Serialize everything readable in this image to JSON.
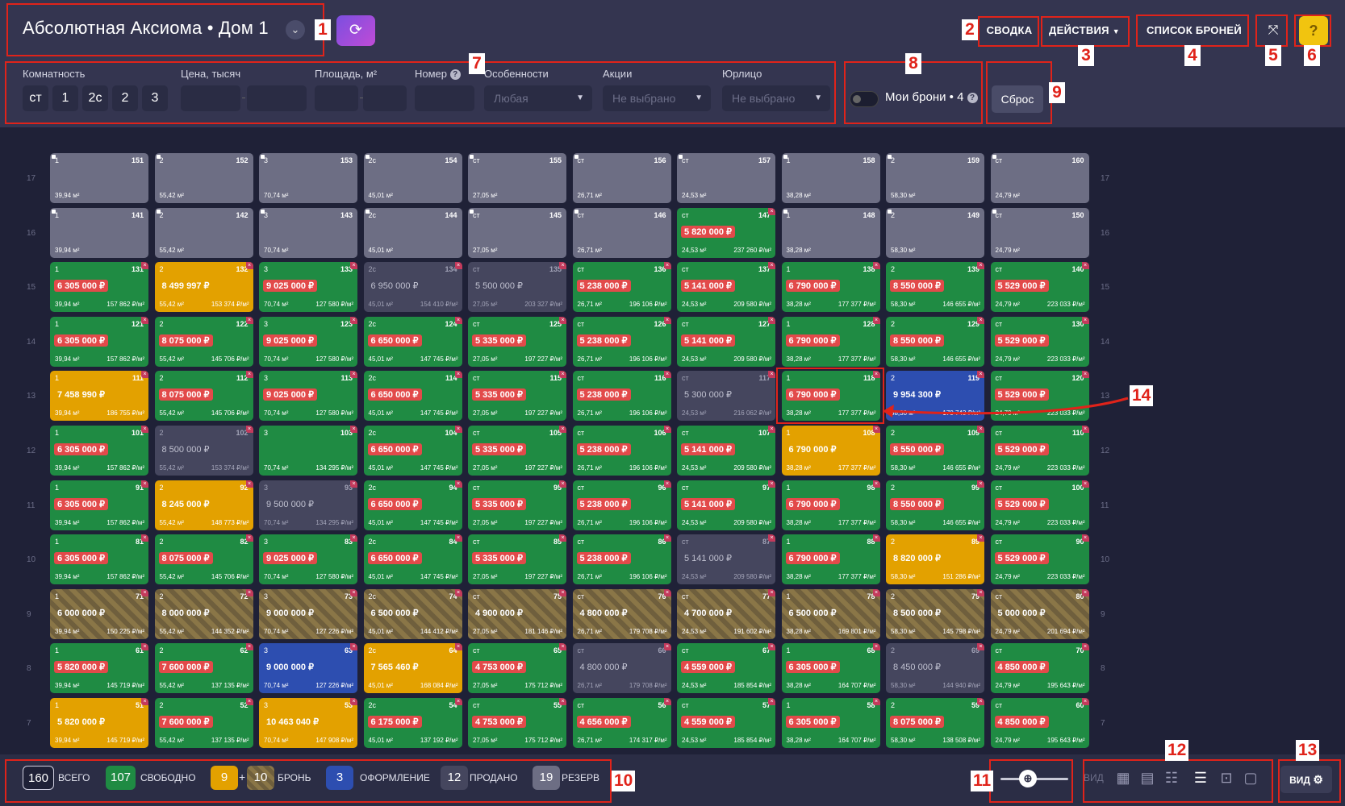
{
  "header": {
    "project_title": "Абсолютная Аксиома • Дом 1",
    "summary_label": "СВОДКА",
    "actions_label": "ДЕЙСТВИЯ",
    "bookings_list_label": "СПИСОК БРОНЕЙ",
    "expand_icon": "expand-icon",
    "help_icon": "help-icon"
  },
  "filters": {
    "rooms_label": "Комнатность",
    "rooms": [
      "ст",
      "1",
      "2с",
      "2",
      "3"
    ],
    "price_label": "Цена, тысяч",
    "area_label": "Площадь, м²",
    "number_label": "Номер",
    "features_label": "Особенности",
    "features_value": "Любая",
    "promos_label": "Акции",
    "promos_value": "Не выбрано",
    "legal_label": "Юрлицо",
    "legal_value": "Не выбрано",
    "my_bookings": "Мои брони • 4",
    "reset_label": "Сброс"
  },
  "footer": {
    "total_count": "160",
    "total_label": "ВСЕГО",
    "free_count": "107",
    "free_label": "СВОБОДНО",
    "book_count_a": "9",
    "plus": "+",
    "book_count_b": "10",
    "book_label": "БРОНЬ",
    "proc_count": "3",
    "proc_label": "ОФОРМЛЕНИЕ",
    "sold_count": "12",
    "sold_label": "ПРОДАНО",
    "res_count": "19",
    "res_label": "РЕЗЕРВ",
    "view_label": "ВИД",
    "view_button": "ВИД"
  },
  "annotations": [
    "1",
    "2",
    "3",
    "4",
    "5",
    "6",
    "7",
    "8",
    "9",
    "10",
    "11",
    "12",
    "13",
    "14"
  ],
  "colors": {
    "free": "#1f8b43",
    "booking": "#e3a100",
    "processing": "#2d4eb0",
    "sold": "#45465e",
    "reserve": "#6d6e84",
    "price_tag": "#e24a4a",
    "annotation": "#e0231a"
  },
  "floors": [
    "17",
    "16",
    "15",
    "14",
    "13",
    "12",
    "11",
    "10",
    "9",
    "8",
    "7"
  ],
  "grid": [
    [
      [
        "1",
        "151",
        "",
        "39,94 м²",
        "",
        "res"
      ],
      [
        "2",
        "152",
        "",
        "55,42 м²",
        "",
        "res"
      ],
      [
        "3",
        "153",
        "",
        "70,74 м²",
        "",
        "res"
      ],
      [
        "2с",
        "154",
        "",
        "45,01 м²",
        "",
        "res"
      ],
      [
        "ст",
        "155",
        "",
        "27,05 м²",
        "",
        "res"
      ],
      [
        "ст",
        "156",
        "",
        "26,71 м²",
        "",
        "res"
      ],
      [
        "ст",
        "157",
        "",
        "24,53 м²",
        "",
        "res"
      ],
      [
        "1",
        "158",
        "",
        "38,28 м²",
        "",
        "res"
      ],
      [
        "2",
        "159",
        "",
        "58,30 м²",
        "",
        "res"
      ],
      [
        "ст",
        "160",
        "",
        "24,79 м²",
        "",
        "res"
      ]
    ],
    [
      [
        "1",
        "141",
        "",
        "39,94 м²",
        "",
        "res"
      ],
      [
        "2",
        "142",
        "",
        "55,42 м²",
        "",
        "res"
      ],
      [
        "3",
        "143",
        "",
        "70,74 м²",
        "",
        "res"
      ],
      [
        "2с",
        "144",
        "",
        "45,01 м²",
        "",
        "res"
      ],
      [
        "ст",
        "145",
        "",
        "27,05 м²",
        "",
        "res"
      ],
      [
        "ст",
        "146",
        "",
        "26,71 м²",
        "",
        "res"
      ],
      [
        "ст",
        "147",
        "5 820 000 ₽",
        "24,53 м²",
        "237 260 ₽/м²",
        "free"
      ],
      [
        "1",
        "148",
        "",
        "38,28 м²",
        "",
        "res"
      ],
      [
        "2",
        "149",
        "",
        "58,30 м²",
        "",
        "res"
      ],
      [
        "ст",
        "150",
        "",
        "24,79 м²",
        "",
        "res"
      ]
    ],
    [
      [
        "1",
        "131",
        "6 305 000 ₽",
        "39,94 м²",
        "157 862 ₽/м²",
        "free"
      ],
      [
        "2",
        "132",
        "8 499 997 ₽",
        "55,42 м²",
        "153 374 ₽/м²",
        "book"
      ],
      [
        "3",
        "133",
        "9 025 000 ₽",
        "70,74 м²",
        "127 580 ₽/м²",
        "free"
      ],
      [
        "2с",
        "134",
        "6 950 000 ₽",
        "45,01 м²",
        "154 410 ₽/м²",
        "sold"
      ],
      [
        "ст",
        "135",
        "5 500 000 ₽",
        "27,05 м²",
        "203 327 ₽/м²",
        "sold"
      ],
      [
        "ст",
        "136",
        "5 238 000 ₽",
        "26,71 м²",
        "196 106 ₽/м²",
        "free"
      ],
      [
        "ст",
        "137",
        "5 141 000 ₽",
        "24,53 м²",
        "209 580 ₽/м²",
        "free"
      ],
      [
        "1",
        "138",
        "6 790 000 ₽",
        "38,28 м²",
        "177 377 ₽/м²",
        "free"
      ],
      [
        "2",
        "139",
        "8 550 000 ₽",
        "58,30 м²",
        "146 655 ₽/м²",
        "free"
      ],
      [
        "ст",
        "140",
        "5 529 000 ₽",
        "24,79 м²",
        "223 033 ₽/м²",
        "free"
      ]
    ],
    [
      [
        "1",
        "121",
        "6 305 000 ₽",
        "39,94 м²",
        "157 862 ₽/м²",
        "free"
      ],
      [
        "2",
        "122",
        "8 075 000 ₽",
        "55,42 м²",
        "145 706 ₽/м²",
        "free"
      ],
      [
        "3",
        "123",
        "9 025 000 ₽",
        "70,74 м²",
        "127 580 ₽/м²",
        "free"
      ],
      [
        "2с",
        "124",
        "6 650 000 ₽",
        "45,01 м²",
        "147 745 ₽/м²",
        "free"
      ],
      [
        "ст",
        "125",
        "5 335 000 ₽",
        "27,05 м²",
        "197 227 ₽/м²",
        "free"
      ],
      [
        "ст",
        "126",
        "5 238 000 ₽",
        "26,71 м²",
        "196 106 ₽/м²",
        "free"
      ],
      [
        "ст",
        "127",
        "5 141 000 ₽",
        "24,53 м²",
        "209 580 ₽/м²",
        "free"
      ],
      [
        "1",
        "128",
        "6 790 000 ₽",
        "38,28 м²",
        "177 377 ₽/м²",
        "free"
      ],
      [
        "2",
        "129",
        "8 550 000 ₽",
        "58,30 м²",
        "146 655 ₽/м²",
        "free"
      ],
      [
        "ст",
        "130",
        "5 529 000 ₽",
        "24,79 м²",
        "223 033 ₽/м²",
        "free"
      ]
    ],
    [
      [
        "1",
        "111",
        "7 458 990 ₽",
        "39,94 м²",
        "186 755 ₽/м²",
        "book"
      ],
      [
        "2",
        "112",
        "8 075 000 ₽",
        "55,42 м²",
        "145 706 ₽/м²",
        "free"
      ],
      [
        "3",
        "113",
        "9 025 000 ₽",
        "70,74 м²",
        "127 580 ₽/м²",
        "free"
      ],
      [
        "2с",
        "114",
        "6 650 000 ₽",
        "45,01 м²",
        "147 745 ₽/м²",
        "free"
      ],
      [
        "ст",
        "115",
        "5 335 000 ₽",
        "27,05 м²",
        "197 227 ₽/м²",
        "free"
      ],
      [
        "ст",
        "116",
        "5 238 000 ₽",
        "26,71 м²",
        "196 106 ₽/м²",
        "free"
      ],
      [
        "ст",
        "117",
        "5 300 000 ₽",
        "24,53 м²",
        "216 062 ₽/м²",
        "sold"
      ],
      [
        "1",
        "118",
        "6 790 000 ₽",
        "38,28 м²",
        "177 377 ₽/м²",
        "free"
      ],
      [
        "2",
        "119",
        "9 954 300 ₽",
        "58,30 м²",
        "170 743 ₽/м²",
        "proc"
      ],
      [
        "ст",
        "120",
        "5 529 000 ₽",
        "24,79 м²",
        "223 033 ₽/м²",
        "free"
      ]
    ],
    [
      [
        "1",
        "101",
        "6 305 000 ₽",
        "39,94 м²",
        "157 862 ₽/м²",
        "free"
      ],
      [
        "2",
        "102",
        "8 500 000 ₽",
        "55,42 м²",
        "153 374 ₽/м²",
        "sold"
      ],
      [
        "3",
        "103",
        "",
        "70,74 м²",
        "134 295 ₽/м²",
        "free"
      ],
      [
        "2с",
        "104",
        "6 650 000 ₽",
        "45,01 м²",
        "147 745 ₽/м²",
        "free"
      ],
      [
        "ст",
        "105",
        "5 335 000 ₽",
        "27,05 м²",
        "197 227 ₽/м²",
        "free"
      ],
      [
        "ст",
        "106",
        "5 238 000 ₽",
        "26,71 м²",
        "196 106 ₽/м²",
        "free"
      ],
      [
        "ст",
        "107",
        "5 141 000 ₽",
        "24,53 м²",
        "209 580 ₽/м²",
        "free"
      ],
      [
        "1",
        "108",
        "6 790 000 ₽",
        "38,28 м²",
        "177 377 ₽/м²",
        "book"
      ],
      [
        "2",
        "109",
        "8 550 000 ₽",
        "58,30 м²",
        "146 655 ₽/м²",
        "free"
      ],
      [
        "ст",
        "110",
        "5 529 000 ₽",
        "24,79 м²",
        "223 033 ₽/м²",
        "free"
      ]
    ],
    [
      [
        "1",
        "91",
        "6 305 000 ₽",
        "39,94 м²",
        "157 862 ₽/м²",
        "free"
      ],
      [
        "2",
        "92",
        "8 245 000 ₽",
        "55,42 м²",
        "148 773 ₽/м²",
        "book"
      ],
      [
        "3",
        "93",
        "9 500 000 ₽",
        "70,74 м²",
        "134 295 ₽/м²",
        "sold"
      ],
      [
        "2с",
        "94",
        "6 650 000 ₽",
        "45,01 м²",
        "147 745 ₽/м²",
        "free"
      ],
      [
        "ст",
        "95",
        "5 335 000 ₽",
        "27,05 м²",
        "197 227 ₽/м²",
        "free"
      ],
      [
        "ст",
        "96",
        "5 238 000 ₽",
        "26,71 м²",
        "196 106 ₽/м²",
        "free"
      ],
      [
        "ст",
        "97",
        "5 141 000 ₽",
        "24,53 м²",
        "209 580 ₽/м²",
        "free"
      ],
      [
        "1",
        "98",
        "6 790 000 ₽",
        "38,28 м²",
        "177 377 ₽/м²",
        "free"
      ],
      [
        "2",
        "99",
        "8 550 000 ₽",
        "58,30 м²",
        "146 655 ₽/м²",
        "free"
      ],
      [
        "ст",
        "100",
        "5 529 000 ₽",
        "24,79 м²",
        "223 033 ₽/м²",
        "free"
      ]
    ],
    [
      [
        "1",
        "81",
        "6 305 000 ₽",
        "39,94 м²",
        "157 862 ₽/м²",
        "free"
      ],
      [
        "2",
        "82",
        "8 075 000 ₽",
        "55,42 м²",
        "145 706 ₽/м²",
        "free"
      ],
      [
        "3",
        "83",
        "9 025 000 ₽",
        "70,74 м²",
        "127 580 ₽/м²",
        "free"
      ],
      [
        "2с",
        "84",
        "6 650 000 ₽",
        "45,01 м²",
        "147 745 ₽/м²",
        "free"
      ],
      [
        "ст",
        "85",
        "5 335 000 ₽",
        "27,05 м²",
        "197 227 ₽/м²",
        "free"
      ],
      [
        "ст",
        "86",
        "5 238 000 ₽",
        "26,71 м²",
        "196 106 ₽/м²",
        "free"
      ],
      [
        "ст",
        "87",
        "5 141 000 ₽",
        "24,53 м²",
        "209 580 ₽/м²",
        "sold"
      ],
      [
        "1",
        "88",
        "6 790 000 ₽",
        "38,28 м²",
        "177 377 ₽/м²",
        "free"
      ],
      [
        "2",
        "89",
        "8 820 000 ₽",
        "58,30 м²",
        "151 286 ₽/м²",
        "book"
      ],
      [
        "ст",
        "90",
        "5 529 000 ₽",
        "24,79 м²",
        "223 033 ₽/м²",
        "free"
      ]
    ],
    [
      [
        "1",
        "71",
        "6 000 000 ₽",
        "39,94 м²",
        "150 225 ₽/м²",
        "bk2"
      ],
      [
        "2",
        "72",
        "8 000 000 ₽",
        "55,42 м²",
        "144 352 ₽/м²",
        "bk2"
      ],
      [
        "3",
        "73",
        "9 000 000 ₽",
        "70,74 м²",
        "127 226 ₽/м²",
        "bk2"
      ],
      [
        "2с",
        "74",
        "6 500 000 ₽",
        "45,01 м²",
        "144 412 ₽/м²",
        "bk2"
      ],
      [
        "ст",
        "75",
        "4 900 000 ₽",
        "27,05 м²",
        "181 146 ₽/м²",
        "bk2"
      ],
      [
        "ст",
        "76",
        "4 800 000 ₽",
        "26,71 м²",
        "179 708 ₽/м²",
        "bk2"
      ],
      [
        "ст",
        "77",
        "4 700 000 ₽",
        "24,53 м²",
        "191 602 ₽/м²",
        "bk2"
      ],
      [
        "1",
        "78",
        "6 500 000 ₽",
        "38,28 м²",
        "169 801 ₽/м²",
        "bk2"
      ],
      [
        "2",
        "79",
        "8 500 000 ₽",
        "58,30 м²",
        "145 798 ₽/м²",
        "bk2"
      ],
      [
        "ст",
        "80",
        "5 000 000 ₽",
        "24,79 м²",
        "201 694 ₽/м²",
        "bk2"
      ]
    ],
    [
      [
        "1",
        "61",
        "5 820 000 ₽",
        "39,94 м²",
        "145 719 ₽/м²",
        "free"
      ],
      [
        "2",
        "62",
        "7 600 000 ₽",
        "55,42 м²",
        "137 135 ₽/м²",
        "free"
      ],
      [
        "3",
        "63",
        "9 000 000 ₽",
        "70,74 м²",
        "127 226 ₽/м²",
        "proc"
      ],
      [
        "2с",
        "64",
        "7 565 460 ₽",
        "45,01 м²",
        "168 084 ₽/м²",
        "book"
      ],
      [
        "ст",
        "65",
        "4 753 000 ₽",
        "27,05 м²",
        "175 712 ₽/м²",
        "free"
      ],
      [
        "ст",
        "66",
        "4 800 000 ₽",
        "26,71 м²",
        "179 708 ₽/м²",
        "sold"
      ],
      [
        "ст",
        "67",
        "4 559 000 ₽",
        "24,53 м²",
        "185 854 ₽/м²",
        "free"
      ],
      [
        "1",
        "68",
        "6 305 000 ₽",
        "38,28 м²",
        "164 707 ₽/м²",
        "free"
      ],
      [
        "2",
        "69",
        "8 450 000 ₽",
        "58,30 м²",
        "144 940 ₽/м²",
        "sold"
      ],
      [
        "ст",
        "70",
        "4 850 000 ₽",
        "24,79 м²",
        "195 643 ₽/м²",
        "free"
      ]
    ],
    [
      [
        "1",
        "51",
        "5 820 000 ₽",
        "39,94 м²",
        "145 719 ₽/м²",
        "book"
      ],
      [
        "2",
        "52",
        "7 600 000 ₽",
        "55,42 м²",
        "137 135 ₽/м²",
        "free"
      ],
      [
        "3",
        "53",
        "10 463 040 ₽",
        "70,74 м²",
        "147 908 ₽/м²",
        "book"
      ],
      [
        "2с",
        "54",
        "6 175 000 ₽",
        "45,01 м²",
        "137 192 ₽/м²",
        "free"
      ],
      [
        "ст",
        "55",
        "4 753 000 ₽",
        "27,05 м²",
        "175 712 ₽/м²",
        "free"
      ],
      [
        "ст",
        "56",
        "4 656 000 ₽",
        "26,71 м²",
        "174 317 ₽/м²",
        "free"
      ],
      [
        "ст",
        "57",
        "4 559 000 ₽",
        "24,53 м²",
        "185 854 ₽/м²",
        "free"
      ],
      [
        "1",
        "58",
        "6 305 000 ₽",
        "38,28 м²",
        "164 707 ₽/м²",
        "free"
      ],
      [
        "2",
        "59",
        "8 075 000 ₽",
        "58,30 м²",
        "138 508 ₽/м²",
        "free"
      ],
      [
        "ст",
        "60",
        "4 850 000 ₽",
        "24,79 м²",
        "195 643 ₽/м²",
        "free"
      ]
    ]
  ]
}
